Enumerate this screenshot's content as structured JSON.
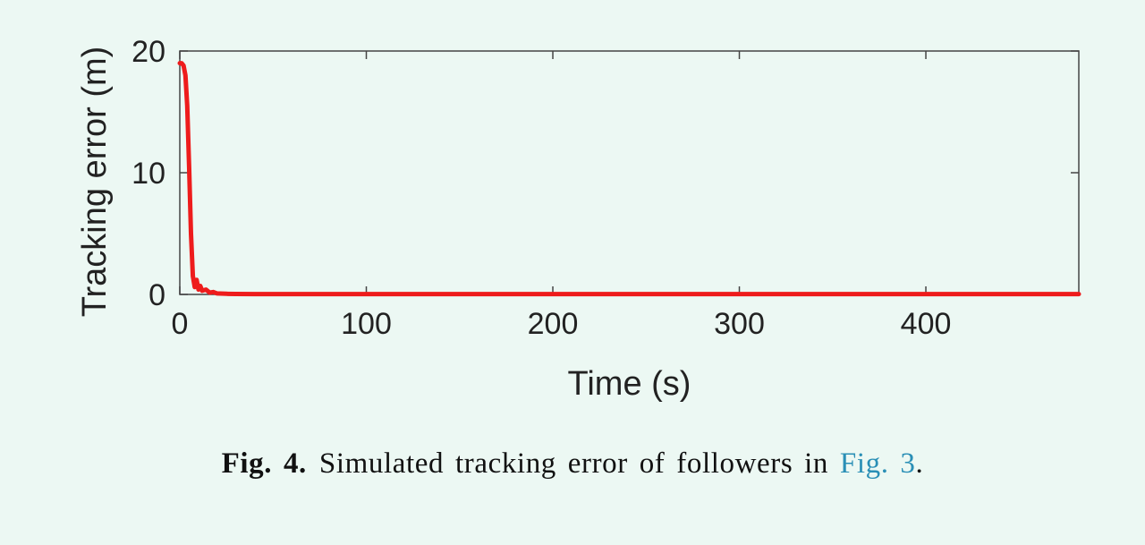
{
  "chart_data": {
    "type": "line",
    "xlabel": "Time (s)",
    "ylabel": "Tracking error (m)",
    "xlim": [
      0,
      482
    ],
    "ylim": [
      0,
      20
    ],
    "x_ticks": [
      0,
      100,
      200,
      300,
      400
    ],
    "y_ticks": [
      0,
      10,
      20
    ],
    "grid": false,
    "legend": "none",
    "series": [
      {
        "color": "#ee1c1c",
        "x": [
          0,
          1,
          2,
          3,
          4,
          5,
          6,
          7,
          8,
          9,
          10,
          11,
          12,
          14,
          16,
          18,
          20,
          25,
          30,
          40,
          50,
          100,
          150,
          200,
          250,
          300,
          350,
          400,
          450,
          482
        ],
        "y": [
          19.0,
          19.0,
          18.8,
          18.0,
          15.5,
          10.5,
          5.0,
          1.5,
          0.6,
          1.2,
          0.4,
          0.7,
          0.3,
          0.4,
          0.15,
          0.2,
          0.08,
          0.05,
          0.04,
          0.03,
          0.03,
          0.03,
          0.03,
          0.03,
          0.03,
          0.03,
          0.03,
          0.03,
          0.03,
          0.03
        ]
      }
    ]
  },
  "caption": {
    "fig_number": "Fig. 4.",
    "text": "Simulated tracking error of followers in",
    "link": "Fig. 3",
    "end": "."
  }
}
